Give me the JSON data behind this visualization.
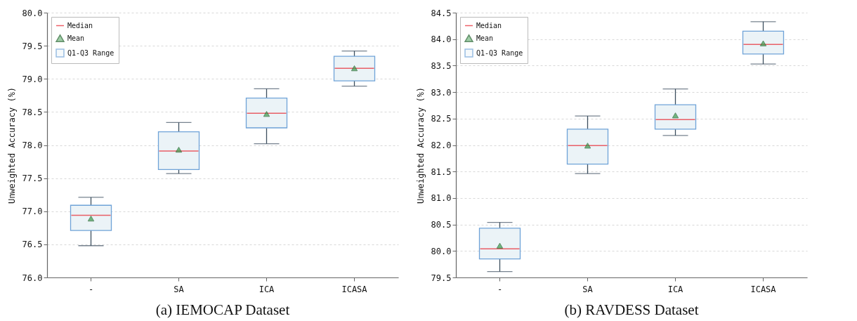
{
  "chart_data": [
    {
      "type": "box",
      "title": "(a) IEMOCAP Dataset",
      "ylabel": "Unweighted Accuracy (%)",
      "categories": [
        "-",
        "SA",
        "ICA",
        "ICASA"
      ],
      "ylim": [
        76.0,
        80.0
      ],
      "yticks": [
        {
          "value": 76,
          "label": "76.0"
        },
        76.5,
        {
          "value": 77,
          "label": "77.0"
        },
        77.5,
        {
          "value": 78,
          "label": "78.0"
        },
        78.5,
        {
          "value": 79,
          "label": "79.0"
        },
        79.5,
        {
          "value": 80,
          "label": "80.0"
        }
      ],
      "grid": "y",
      "legend": "top left",
      "annotations": [
        "Median"
      ],
      "series": [
        {
          "type": "box",
          "name": "Q1-Q3 Range",
          "color": "#6fa3d8",
          "boxes": [
            {
              "low": 76.48,
              "q1": 76.71,
              "median": 76.94,
              "q3": 77.09,
              "high": 77.21
            },
            {
              "low": 77.57,
              "q1": 77.63,
              "median": 77.91,
              "q3": 78.2,
              "high": 78.34
            },
            {
              "low": 78.02,
              "q1": 78.26,
              "median": 78.48,
              "q3": 78.71,
              "high": 78.85
            },
            {
              "low": 78.89,
              "q1": 78.97,
              "median": 79.16,
              "q3": 79.34,
              "high": 79.42
            }
          ]
        },
        {
          "type": "scatter",
          "name": "Mean",
          "color": "#3a9a4a",
          "marker": "triangle",
          "x": [
            "-",
            "SA",
            "ICA",
            "ICASA"
          ],
          "values": [
            76.89,
            77.93,
            78.47,
            79.16
          ]
        }
      ]
    },
    {
      "type": "box",
      "title": "(b) RAVDESS Dataset",
      "ylabel": "Unweighted Accuracy (%)",
      "categories": [
        "-",
        "SA",
        "ICA",
        "ICASA"
      ],
      "ylim": [
        79.5,
        84.5
      ],
      "yticks": [
        79.5,
        {
          "value": 80,
          "label": "80.0"
        },
        80.5,
        {
          "value": 81,
          "label": "81.0"
        },
        81.5,
        {
          "value": 82,
          "label": "82.0"
        },
        82.5,
        {
          "value": 83,
          "label": "83.0"
        },
        83.5,
        {
          "value": 84,
          "label": "84.0"
        },
        84.5
      ],
      "grid": "y",
      "legend": "top left",
      "annotations": [
        "Median"
      ],
      "series": [
        {
          "type": "box",
          "name": "Q1-Q3 Range",
          "color": "#6fa3d8",
          "boxes": [
            {
              "low": 79.61,
              "q1": 79.85,
              "median": 80.04,
              "q3": 80.43,
              "high": 80.54
            },
            {
              "low": 81.46,
              "q1": 81.64,
              "median": 81.99,
              "q3": 82.3,
              "high": 82.55
            },
            {
              "low": 82.18,
              "q1": 82.3,
              "median": 82.48,
              "q3": 82.76,
              "high": 83.06
            },
            {
              "low": 83.53,
              "q1": 83.72,
              "median": 83.9,
              "q3": 84.15,
              "high": 84.33
            }
          ]
        },
        {
          "type": "scatter",
          "name": "Mean",
          "color": "#3a9a4a",
          "marker": "triangle",
          "x": [
            "-",
            "SA",
            "ICA",
            "ICASA"
          ],
          "values": [
            80.1,
            81.99,
            82.56,
            83.92
          ]
        }
      ]
    }
  ]
}
